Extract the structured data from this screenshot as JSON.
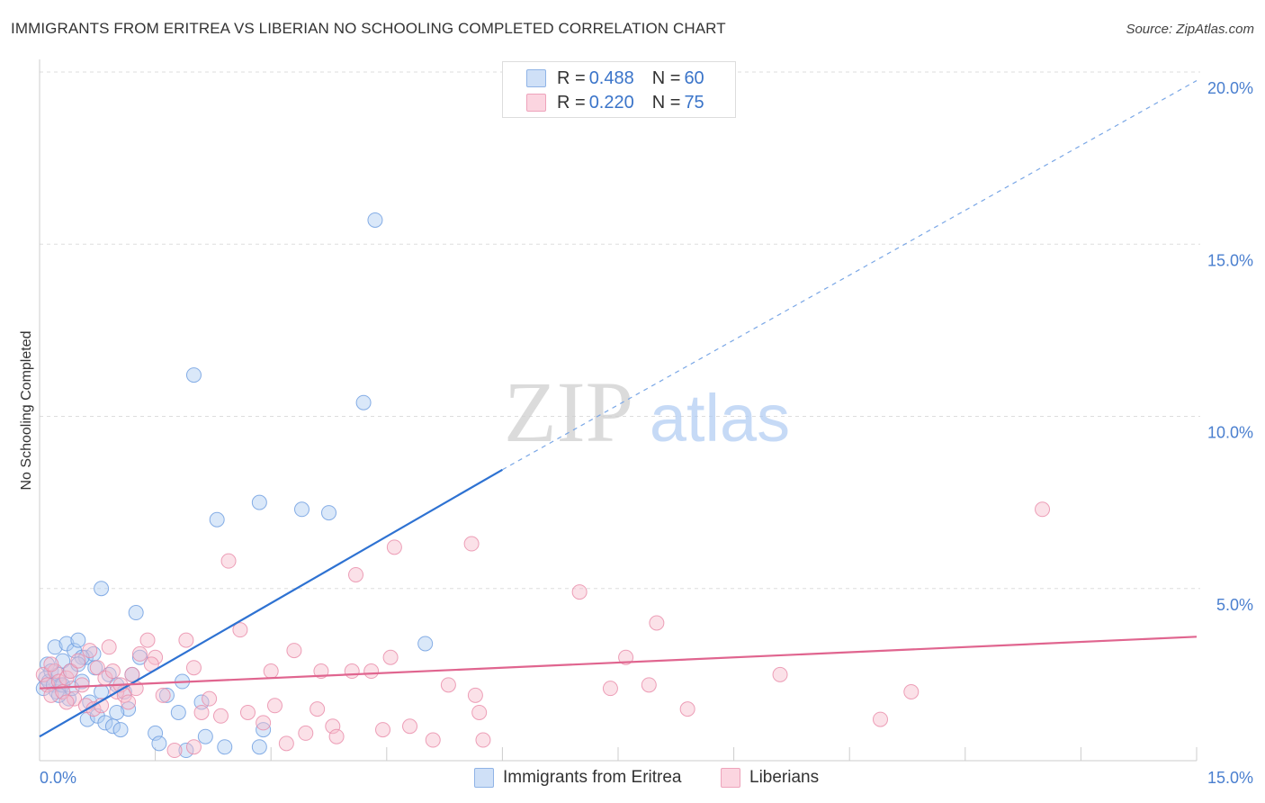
{
  "title": "IMMIGRANTS FROM ERITREA VS LIBERIAN NO SCHOOLING COMPLETED CORRELATION CHART",
  "source": "Source: ZipAtlas.com",
  "watermark": {
    "zip": "ZIP",
    "atlas": "atlas"
  },
  "legend": {
    "rows": [
      {
        "r_label": "R =",
        "r_value": "0.488",
        "n_label": "N =",
        "n_value": "60",
        "color": "#aecbf2"
      },
      {
        "r_label": "R =",
        "r_value": "0.220",
        "n_label": "N =",
        "n_value": "75",
        "color": "#f7bccd"
      }
    ]
  },
  "bottom_legend": {
    "series1": "Immigrants from Eritrea",
    "series2": "Liberians"
  },
  "chart_data": {
    "type": "scatter",
    "title": "IMMIGRANTS FROM ERITREA VS LIBERIAN NO SCHOOLING COMPLETED CORRELATION CHART",
    "xlabel": "",
    "ylabel": "No Schooling Completed",
    "xlim": [
      0,
      15
    ],
    "ylim": [
      0,
      20
    ],
    "x_tick_labels": [
      "0.0%",
      "15.0%"
    ],
    "y_tick_labels": [
      "5.0%",
      "10.0%",
      "15.0%",
      "20.0%"
    ],
    "y_ticks": [
      5,
      10,
      15,
      20
    ],
    "grid": true,
    "series": [
      {
        "name": "Immigrants from Eritrea",
        "color": "#6a9be0",
        "fill": "#aecbf2",
        "R": 0.488,
        "N": 60,
        "trend": {
          "x": [
            0,
            6
          ],
          "y": [
            0.7,
            8.45
          ],
          "dashed_to": [
            15,
            19.75
          ]
        },
        "points": [
          [
            0.05,
            2.1
          ],
          [
            0.08,
            2.4
          ],
          [
            0.1,
            2.8
          ],
          [
            0.12,
            2.3
          ],
          [
            0.15,
            2.6
          ],
          [
            0.18,
            2.2
          ],
          [
            0.2,
            3.3
          ],
          [
            0.22,
            2.0
          ],
          [
            0.25,
            2.5
          ],
          [
            0.28,
            2.2
          ],
          [
            0.3,
            2.9
          ],
          [
            0.35,
            3.4
          ],
          [
            0.38,
            1.8
          ],
          [
            0.4,
            2.6
          ],
          [
            0.45,
            3.2
          ],
          [
            0.5,
            3.5
          ],
          [
            0.55,
            2.3
          ],
          [
            0.6,
            3.0
          ],
          [
            0.62,
            1.2
          ],
          [
            0.7,
            3.1
          ],
          [
            0.72,
            2.7
          ],
          [
            0.75,
            1.3
          ],
          [
            0.8,
            5.0
          ],
          [
            0.8,
            2.0
          ],
          [
            0.85,
            1.1
          ],
          [
            0.9,
            2.5
          ],
          [
            0.95,
            1.0
          ],
          [
            1.0,
            2.2
          ],
          [
            1.05,
            0.9
          ],
          [
            1.1,
            2.0
          ],
          [
            1.15,
            1.5
          ],
          [
            1.2,
            2.5
          ],
          [
            1.25,
            4.3
          ],
          [
            1.3,
            3.0
          ],
          [
            1.5,
            0.8
          ],
          [
            1.55,
            0.5
          ],
          [
            1.65,
            1.9
          ],
          [
            1.8,
            1.4
          ],
          [
            1.85,
            2.3
          ],
          [
            1.9,
            0.3
          ],
          [
            2.0,
            11.2
          ],
          [
            2.1,
            1.7
          ],
          [
            2.15,
            0.7
          ],
          [
            2.3,
            7.0
          ],
          [
            2.4,
            0.4
          ],
          [
            2.85,
            7.5
          ],
          [
            2.85,
            0.4
          ],
          [
            2.9,
            0.9
          ],
          [
            3.4,
            7.3
          ],
          [
            3.75,
            7.2
          ],
          [
            4.2,
            10.4
          ],
          [
            4.35,
            15.7
          ],
          [
            5.0,
            3.4
          ],
          [
            0.3,
            2.2
          ],
          [
            0.42,
            2.1
          ],
          [
            0.55,
            3.0
          ],
          [
            0.65,
            1.7
          ],
          [
            0.5,
            2.8
          ],
          [
            1.0,
            1.4
          ],
          [
            0.25,
            1.9
          ]
        ]
      },
      {
        "name": "Liberians",
        "color": "#e98aa8",
        "fill": "#f7bccd",
        "R": 0.22,
        "N": 75,
        "trend": {
          "x": [
            0,
            15
          ],
          "y": [
            2.1,
            3.6
          ]
        },
        "points": [
          [
            0.05,
            2.5
          ],
          [
            0.1,
            2.2
          ],
          [
            0.15,
            1.9
          ],
          [
            0.2,
            2.6
          ],
          [
            0.25,
            2.3
          ],
          [
            0.3,
            2.0
          ],
          [
            0.35,
            2.4
          ],
          [
            0.4,
            2.6
          ],
          [
            0.45,
            1.8
          ],
          [
            0.5,
            2.9
          ],
          [
            0.55,
            2.2
          ],
          [
            0.6,
            1.6
          ],
          [
            0.65,
            3.2
          ],
          [
            0.7,
            1.5
          ],
          [
            0.75,
            2.7
          ],
          [
            0.8,
            1.6
          ],
          [
            0.85,
            2.4
          ],
          [
            0.9,
            3.3
          ],
          [
            0.95,
            2.6
          ],
          [
            1.0,
            2.0
          ],
          [
            1.05,
            2.2
          ],
          [
            1.1,
            1.9
          ],
          [
            1.15,
            1.7
          ],
          [
            1.2,
            2.5
          ],
          [
            1.25,
            2.1
          ],
          [
            1.3,
            3.1
          ],
          [
            1.4,
            3.5
          ],
          [
            1.5,
            3.0
          ],
          [
            1.6,
            1.9
          ],
          [
            1.75,
            0.3
          ],
          [
            1.9,
            3.5
          ],
          [
            2.0,
            2.7
          ],
          [
            2.1,
            1.4
          ],
          [
            2.2,
            1.8
          ],
          [
            2.35,
            1.3
          ],
          [
            2.45,
            5.8
          ],
          [
            2.6,
            3.8
          ],
          [
            2.7,
            1.4
          ],
          [
            2.9,
            1.1
          ],
          [
            3.0,
            2.6
          ],
          [
            3.05,
            1.6
          ],
          [
            3.2,
            0.5
          ],
          [
            3.3,
            3.2
          ],
          [
            3.45,
            0.8
          ],
          [
            3.6,
            1.5
          ],
          [
            3.65,
            2.6
          ],
          [
            3.8,
            1.0
          ],
          [
            3.85,
            0.7
          ],
          [
            4.05,
            2.6
          ],
          [
            4.1,
            5.4
          ],
          [
            4.3,
            2.6
          ],
          [
            4.45,
            0.9
          ],
          [
            4.55,
            3.0
          ],
          [
            4.6,
            6.2
          ],
          [
            4.8,
            1.0
          ],
          [
            5.1,
            0.6
          ],
          [
            5.3,
            2.2
          ],
          [
            5.6,
            6.3
          ],
          [
            5.65,
            1.9
          ],
          [
            5.7,
            1.4
          ],
          [
            7.0,
            4.9
          ],
          [
            7.4,
            2.1
          ],
          [
            7.6,
            3.0
          ],
          [
            7.9,
            2.2
          ],
          [
            8.0,
            4.0
          ],
          [
            8.4,
            1.5
          ],
          [
            9.6,
            2.5
          ],
          [
            10.9,
            1.2
          ],
          [
            11.3,
            2.0
          ],
          [
            13.0,
            7.3
          ],
          [
            0.15,
            2.8
          ],
          [
            0.35,
            1.7
          ],
          [
            1.45,
            2.8
          ],
          [
            2.0,
            0.4
          ],
          [
            5.75,
            0.6
          ]
        ]
      }
    ]
  }
}
